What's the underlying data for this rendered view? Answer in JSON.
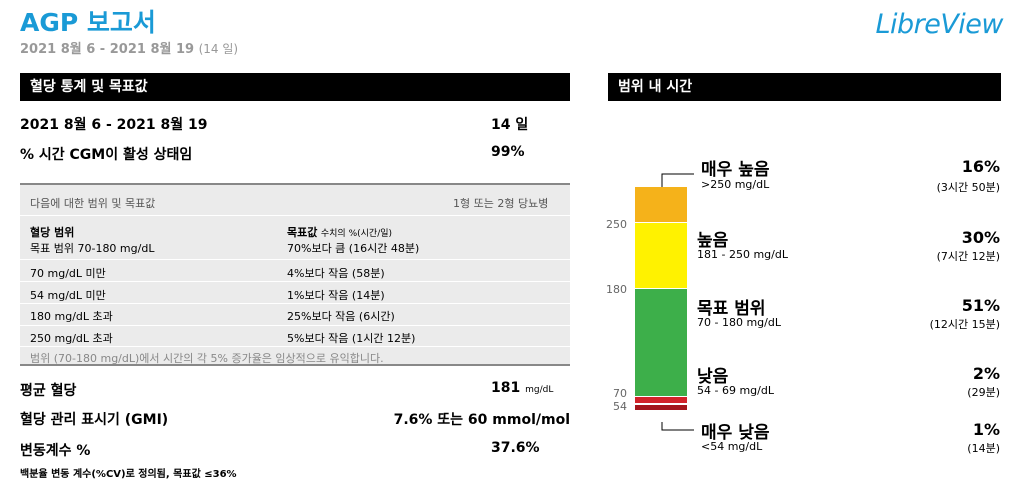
{
  "header": {
    "title": "AGP 보고서",
    "date_range": "2021 8월 6 - 2021 8월 19",
    "days": "(14 일)",
    "logo": "LibreView"
  },
  "stats": {
    "section_title": "혈당 통계 및 목표값",
    "period_label": "2021 8월 6 - 2021 8월 19",
    "period_days": "14 일",
    "cgm_active_label": "% 시간 CGM이 활성 상태임",
    "cgm_active_value": "99%"
  },
  "targets": {
    "header_left": "다음에 대한 범위 및 목표값",
    "header_right": "1형 또는 2형 당뇨병",
    "col1_title": "혈당 범위",
    "col2_title": "목표값",
    "col2_subtitle": "수치의 %(시간/일)",
    "rows": [
      {
        "range": "목표 범위 70-180 mg/dL",
        "target": "70%보다 큼 (16시간 48분)"
      },
      {
        "range": "70 mg/dL 미만",
        "target": "4%보다 작음 (58분)"
      },
      {
        "range": "54 mg/dL 미만",
        "target": "1%보다 작음 (14분)"
      },
      {
        "range": "180 mg/dL 초과",
        "target": "25%보다 작음 (6시간)"
      },
      {
        "range": "250 mg/dL 초과",
        "target": "5%보다 작음 (1시간 12분)"
      }
    ],
    "footnote": "범위 (70-180 mg/dL)에서 시간의 각 5% 증가율은 임상적으로 유익합니다."
  },
  "metrics": {
    "mean_label": "평균 혈당",
    "mean_value": "181",
    "mean_unit": "mg/dL",
    "gmi_label": "혈당 관리 표시기 (GMI)",
    "gmi_value": "7.6% 또는 60 mmol/mol",
    "cv_label": "변동계수 %",
    "cv_value": "37.6%",
    "cv_note": "백분율 변동 계수(%CV)로 정의됨, 목표값 ≤36%"
  },
  "tir": {
    "section_title": "범위 내 시간",
    "axis": [
      "250",
      "180",
      "70",
      "54"
    ],
    "colors": {
      "very_high": "#f5b21a",
      "high": "#fff200",
      "target": "#3daf4a",
      "low": "#d2232a",
      "very_low": "#a4161c"
    },
    "rows": [
      {
        "name": "매우 높음",
        "range": ">250 mg/dL",
        "pct": "16%",
        "dur": "(3시간 50분)"
      },
      {
        "name": "높음",
        "range": "181 - 250 mg/dL",
        "pct": "30%",
        "dur": "(7시간 12분)"
      },
      {
        "name": "목표 범위",
        "range": "70 - 180 mg/dL",
        "pct": "51%",
        "dur": "(12시간 15분)"
      },
      {
        "name": "낮음",
        "range": "54 - 69 mg/dL",
        "pct": "2%",
        "dur": "(29분)"
      },
      {
        "name": "매우 낮음",
        "range": "<54 mg/dL",
        "pct": "1%",
        "dur": "(14분)"
      }
    ]
  }
}
